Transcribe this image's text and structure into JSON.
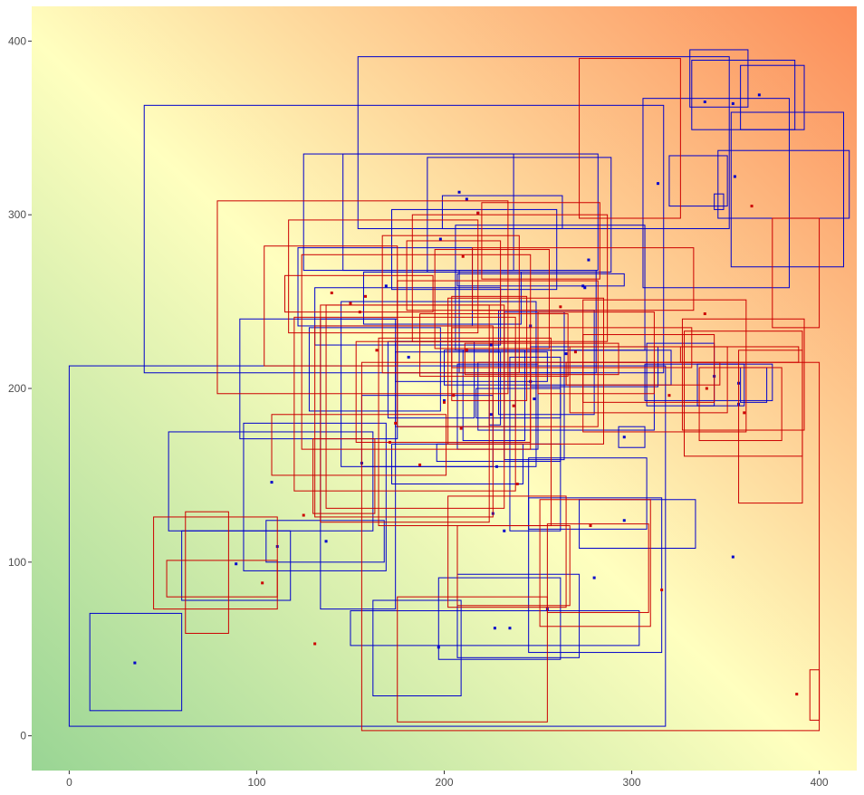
{
  "chart_data": {
    "type": "scatter",
    "title": "",
    "xlabel": "",
    "ylabel": "",
    "xlim": [
      -20,
      420
    ],
    "ylim": [
      -20,
      420
    ],
    "x_ticks": [
      0,
      100,
      200,
      300,
      400
    ],
    "y_ticks": [
      0,
      100,
      200,
      300,
      400
    ],
    "x_tick_labels": [
      "0",
      "100",
      "200",
      "300",
      "400"
    ],
    "y_tick_labels": [
      "0",
      "100",
      "200",
      "300",
      "400"
    ],
    "grid": false,
    "legend": "none",
    "background_gradient": {
      "bottom_left": "#99D594",
      "middle": "#FFFFBF",
      "top_right": "#FC8D59"
    },
    "colors": {
      "blue": "#0000CC",
      "red": "#CC0000"
    },
    "series": [
      {
        "color": "blue",
        "rectangles": [
          [
            0,
            5.5,
            318,
            213
          ],
          [
            40,
            209,
            317,
            363
          ],
          [
            154,
            292,
            352,
            391
          ],
          [
            11,
            14.5,
            60,
            70.5
          ],
          [
            60,
            78,
            118,
            118
          ],
          [
            53,
            118,
            162,
            175
          ],
          [
            93,
            95,
            169,
            180
          ],
          [
            105,
            100,
            168,
            124
          ],
          [
            91,
            171,
            175,
            240
          ],
          [
            134,
            73,
            174,
            240
          ],
          [
            128,
            187,
            198,
            235
          ],
          [
            122,
            236,
            215,
            281
          ],
          [
            131,
            225,
            230,
            258
          ],
          [
            145,
            155,
            249,
            250
          ],
          [
            157,
            237,
            241,
            267
          ],
          [
            170,
            183,
            216,
            227
          ],
          [
            174,
            204,
            255,
            221
          ],
          [
            174,
            178,
            238,
            227
          ],
          [
            172,
            257,
            260,
            303
          ],
          [
            146,
            268,
            237,
            335
          ],
          [
            125,
            268,
            282,
            335
          ],
          [
            191,
            267,
            289,
            333
          ],
          [
            199,
            292,
            263,
            311
          ],
          [
            206,
            222,
            307,
            294
          ],
          [
            208,
            209,
            281,
            268
          ],
          [
            207,
            259,
            296,
            266
          ],
          [
            200,
            202,
            321,
            222
          ],
          [
            207,
            165,
            250,
            214
          ],
          [
            210,
            170,
            243,
            222
          ],
          [
            217,
            183,
            262,
            200
          ],
          [
            218,
            176,
            312,
            215
          ],
          [
            172,
            145,
            242,
            168
          ],
          [
            156,
            155,
            226,
            196
          ],
          [
            196,
            158,
            262,
            168
          ],
          [
            246,
            201,
            314,
            224
          ],
          [
            224,
            179,
            230,
            221
          ],
          [
            235,
            118,
            262,
            218
          ],
          [
            245,
            119,
            308,
            160
          ],
          [
            272,
            108,
            334,
            136
          ],
          [
            245,
            48,
            316,
            137
          ],
          [
            197,
            44,
            262,
            91
          ],
          [
            150,
            52,
            304,
            72
          ],
          [
            162,
            23,
            209,
            78
          ],
          [
            207,
            45,
            272,
            93
          ],
          [
            308,
            190,
            344,
            226
          ],
          [
            335,
            190,
            360,
            214
          ],
          [
            358,
            192,
            372,
            212
          ],
          [
            307,
            193,
            375,
            214
          ],
          [
            320,
            305,
            351,
            334
          ],
          [
            332,
            349,
            387,
            389
          ],
          [
            358,
            349,
            392,
            386
          ],
          [
            346,
            298,
            416,
            337
          ],
          [
            353,
            270,
            413,
            359
          ],
          [
            331,
            362,
            362,
            395
          ],
          [
            306,
            258,
            384,
            367
          ],
          [
            344,
            303,
            349,
            312
          ],
          [
            229,
            185,
            280,
            245
          ],
          [
            232,
            159,
            264,
            244
          ],
          [
            293,
            166,
            307,
            178
          ]
        ],
        "points": [
          [
            35,
            42
          ],
          [
            89,
            99
          ],
          [
            108,
            146
          ],
          [
            111,
            109
          ],
          [
            137,
            112
          ],
          [
            156,
            157
          ],
          [
            169,
            259
          ],
          [
            181,
            218
          ],
          [
            200,
            193
          ],
          [
            198,
            286
          ],
          [
            208,
            313
          ],
          [
            212,
            309
          ],
          [
            218,
            301
          ],
          [
            225,
            185
          ],
          [
            225,
            225
          ],
          [
            226,
            128
          ],
          [
            227,
            62
          ],
          [
            228,
            155
          ],
          [
            232,
            118
          ],
          [
            235,
            62
          ],
          [
            246,
            236
          ],
          [
            246,
            204
          ],
          [
            248,
            194
          ],
          [
            265,
            220
          ],
          [
            274,
            259
          ],
          [
            275,
            258
          ],
          [
            277,
            274
          ],
          [
            280,
            91
          ],
          [
            296,
            172
          ],
          [
            296,
            124
          ],
          [
            314,
            318
          ],
          [
            344,
            207
          ],
          [
            339,
            365
          ],
          [
            354,
            364
          ],
          [
            368,
            369
          ],
          [
            355,
            322
          ],
          [
            357,
            191
          ],
          [
            357,
            203
          ],
          [
            354,
            103
          ],
          [
            255,
            73
          ],
          [
            197,
            51
          ]
        ]
      },
      {
        "color": "red",
        "rectangles": [
          [
            79,
            197,
            234,
            308
          ],
          [
            104,
            213,
            175,
            282
          ],
          [
            117,
            232,
            218,
            297
          ],
          [
            115,
            244,
            194,
            265
          ],
          [
            124,
            165,
            246,
            277
          ],
          [
            137,
            131,
            232,
            248
          ],
          [
            120,
            141,
            238,
            241
          ],
          [
            134,
            123,
            224,
            248
          ],
          [
            131,
            126,
            226,
            236
          ],
          [
            165,
            121,
            257,
            229
          ],
          [
            153,
            169,
            246,
            227
          ],
          [
            171,
            238,
            275,
            225
          ],
          [
            183,
            227,
            287,
            300
          ],
          [
            180,
            245,
            230,
            285
          ],
          [
            187,
            207,
            266,
            243
          ],
          [
            175,
            178,
            282,
            262
          ],
          [
            195,
            223,
            256,
            280
          ],
          [
            167,
            209,
            240,
            288
          ],
          [
            204,
            193,
            244,
            253
          ],
          [
            202,
            168,
            285,
            252
          ],
          [
            220,
            263,
            283,
            307
          ],
          [
            204,
            212,
            332,
            235
          ],
          [
            211,
            208,
            293,
            226
          ],
          [
            215,
            245,
            333,
            281
          ],
          [
            272,
            298,
            326,
            390
          ],
          [
            267,
            186,
            351,
            224
          ],
          [
            274,
            175,
            361,
            251
          ],
          [
            250,
            197,
            312,
            244
          ],
          [
            265,
            202,
            347,
            215
          ],
          [
            274,
            192,
            344,
            231
          ],
          [
            326,
            215,
            389,
            224
          ],
          [
            328,
            161,
            391,
            233
          ],
          [
            327,
            176,
            392,
            240
          ],
          [
            357,
            134,
            391,
            222
          ],
          [
            375,
            235,
            400,
            298
          ],
          [
            336,
            170,
            380,
            212
          ],
          [
            255,
            71,
            309,
            122
          ],
          [
            202,
            74,
            265,
            138
          ],
          [
            156,
            3,
            400,
            215
          ],
          [
            251,
            63,
            310,
            136
          ],
          [
            207,
            75,
            267,
            121
          ],
          [
            108,
            150,
            201,
            185
          ],
          [
            130,
            128,
            163,
            171
          ],
          [
            45,
            73,
            111,
            126
          ],
          [
            52,
            80,
            111,
            101
          ],
          [
            62,
            59,
            85,
            129
          ],
          [
            175,
            8,
            255,
            80
          ],
          [
            395,
            9,
            400,
            38
          ]
        ],
        "points": [
          [
            103,
            88
          ],
          [
            131,
            53
          ],
          [
            140,
            255
          ],
          [
            150,
            249
          ],
          [
            155,
            244
          ],
          [
            158,
            253
          ],
          [
            164,
            222
          ],
          [
            171,
            169
          ],
          [
            174,
            180
          ],
          [
            187,
            156
          ],
          [
            200,
            192
          ],
          [
            205,
            196
          ],
          [
            209,
            177
          ],
          [
            212,
            222
          ],
          [
            218,
            301
          ],
          [
            237,
            190
          ],
          [
            239,
            145
          ],
          [
            262,
            247
          ],
          [
            270,
            221
          ],
          [
            278,
            121
          ],
          [
            316,
            84
          ],
          [
            320,
            196
          ],
          [
            340,
            200
          ],
          [
            339,
            243
          ],
          [
            360,
            186
          ],
          [
            364,
            305
          ],
          [
            388,
            24
          ],
          [
            125,
            127
          ],
          [
            210,
            276
          ]
        ]
      }
    ]
  }
}
